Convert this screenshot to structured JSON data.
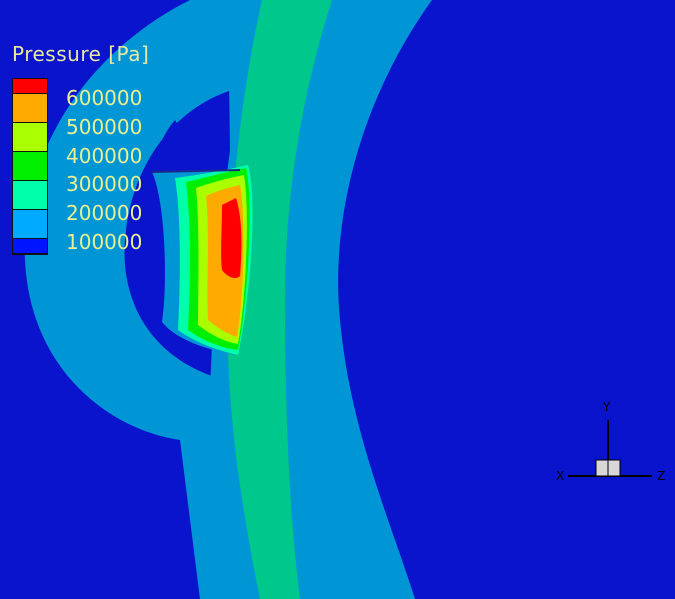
{
  "legend": {
    "title": "Pressure [Pa]",
    "levels": [
      {
        "label": "600000",
        "color": "#ff0000"
      },
      {
        "label": "500000",
        "color": "#ffaa00"
      },
      {
        "label": "400000",
        "color": "#aaff00"
      },
      {
        "label": "300000",
        "color": "#00ee00"
      },
      {
        "label": "200000",
        "color": "#00ffaa"
      },
      {
        "label": "100000",
        "color": "#00aaff"
      },
      {
        "label": "",
        "color": "#0014ff"
      }
    ]
  },
  "axes": {
    "x": "X",
    "y": "Y",
    "z": "Z"
  },
  "colors": {
    "background": "#0a14cc",
    "light_band": "#0096d6",
    "green_band": "#00c88c"
  }
}
